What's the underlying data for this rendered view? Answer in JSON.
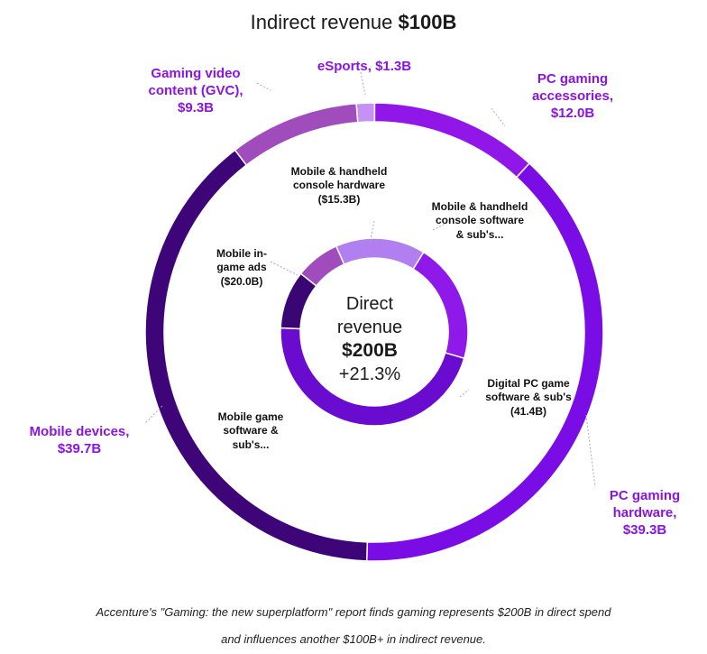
{
  "title": {
    "prefix": "Indirect revenue",
    "amount": "$100B"
  },
  "center": {
    "line1": "Direct",
    "line2": "revenue",
    "amount": "$200B",
    "growth": "+21.3%"
  },
  "chart_data": [
    {
      "type": "pie",
      "variant": "donut",
      "name": "Indirect revenue",
      "total": 100,
      "unit": "$B",
      "categories": [
        "eSports",
        "PC gaming accessories",
        "PC gaming hardware",
        "Mobile devices",
        "Gaming video content (GVC)"
      ],
      "values": [
        1.3,
        12.0,
        39.3,
        39.7,
        9.3
      ],
      "labels": [
        [
          "eSports, $1.3B"
        ],
        [
          "PC gaming",
          "accessories,",
          "$12.0B"
        ],
        [
          "PC gaming",
          "hardware,",
          "$39.3B"
        ],
        [
          "Mobile devices,",
          "$39.7B"
        ],
        [
          "Gaming video",
          "content (GVC),",
          "$9.3B"
        ]
      ],
      "colors": [
        "#c690f4",
        "#9116e8",
        "#7a0ce6",
        "#3d0578",
        "#a04cbd"
      ]
    },
    {
      "type": "pie",
      "variant": "donut",
      "name": "Direct revenue",
      "total": 200,
      "unit": "$B",
      "categories": [
        "Mobile & handheld console software & sub's",
        "Digital PC game software & sub's",
        "Mobile game software & sub's",
        "Mobile in-game ads",
        "Mobile & handheld console hardware"
      ],
      "values": [
        31.0,
        41.4,
        92.3,
        20.0,
        15.3
      ],
      "labels": [
        [
          "Mobile & handheld",
          "console software",
          "& sub's..."
        ],
        [
          "Digital PC game",
          "software & sub's",
          "(41.4B)"
        ],
        [
          "Mobile game",
          "software &",
          "sub's..."
        ],
        [
          "Mobile in-",
          "game ads",
          "($20.0B)"
        ],
        [
          "Mobile & handheld",
          "console hardware",
          "($15.3B)"
        ]
      ],
      "colors": [
        "#b27ff0",
        "#8f19e8",
        "#6a0cd0",
        "#3a0673",
        "#a04cbd"
      ]
    }
  ],
  "caption": {
    "line1": "Accenture's \"Gaming: the new superplatform\" report finds gaming represents $200B in direct spend",
    "line2": "and influences another $100B+ in indirect revenue."
  }
}
